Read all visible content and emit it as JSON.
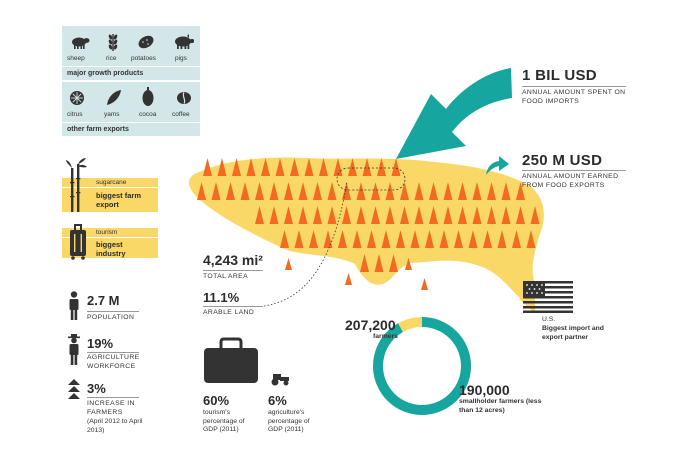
{
  "growth_products": {
    "items": [
      {
        "label": "sheep",
        "icon": "sheep-icon"
      },
      {
        "label": "rice",
        "icon": "rice-icon"
      },
      {
        "label": "potatoes",
        "icon": "potato-icon"
      },
      {
        "label": "pigs",
        "icon": "pig-icon"
      }
    ],
    "caption": "major growth products"
  },
  "farm_exports": {
    "items": [
      {
        "label": "citrus",
        "icon": "citrus-icon"
      },
      {
        "label": "yams",
        "icon": "yam-icon"
      },
      {
        "label": "cocoa",
        "icon": "cocoa-icon"
      },
      {
        "label": "coffee",
        "icon": "coffee-icon"
      }
    ],
    "caption": "other farm exports"
  },
  "sugarcane": {
    "small": "sugarcane",
    "title": "biggest farm export"
  },
  "tourism": {
    "small": "tourism",
    "title": "biggest industry"
  },
  "population": {
    "value": "2.7 M",
    "label": "POPULATION"
  },
  "workforce": {
    "value": "19%",
    "label": "AGRICULTURE WORKFORCE"
  },
  "farmers_increase": {
    "value": "3%",
    "label": "INCREASE IN FARMERS",
    "note": "(April 2012 to April 2013)"
  },
  "total_area": {
    "value": "4,243 mi²",
    "label": "TOTAL AREA"
  },
  "arable": {
    "value": "11.1%",
    "label": "ARABLE LAND"
  },
  "food_imports": {
    "value": "1 BIL USD",
    "label": "ANNUAL AMOUNT SPENT ON FOOD IMPORTS"
  },
  "food_exports": {
    "value": "250 M USD",
    "label": "ANNUAL AMOUNT EARNED FROM FOOD EXPORTS"
  },
  "partner": {
    "country": "U.S.",
    "label": "Biggest import and export partner"
  },
  "tourism_gdp": {
    "value": "60%",
    "label": "tourism's percentage of GDP (2011)"
  },
  "agri_gdp": {
    "value": "6%",
    "label": "agriculture's percentage of GDP (2011)"
  },
  "farmers": {
    "value": "207,200",
    "label": "farmers"
  },
  "smallholders": {
    "value": "190,000",
    "label": "smallholder farmers (less than 12 acres)"
  },
  "colors": {
    "panel_blue": "#d3e7e8",
    "yellow": "#f9d867",
    "orange": "#f26b21",
    "teal": "#16a69f",
    "dark": "#333333"
  },
  "ring": {
    "total": 207200,
    "smallholders": 190000
  }
}
